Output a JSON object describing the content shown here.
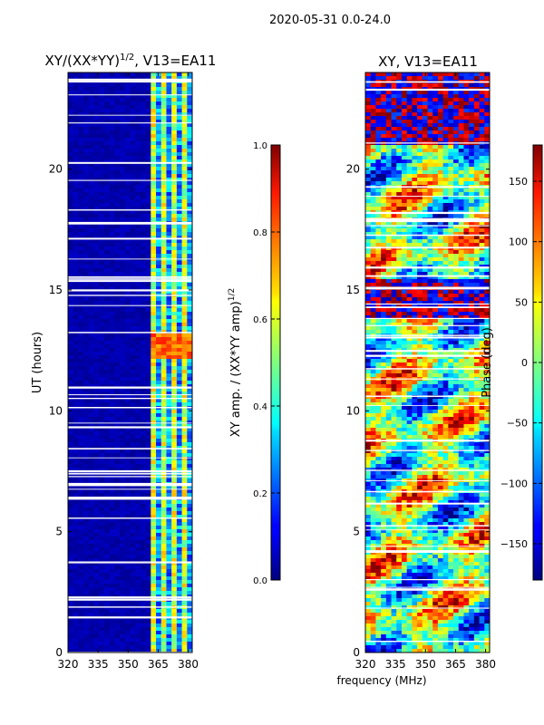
{
  "suptitle": "2020-05-31 0.0-24.0",
  "shared_xlabel": "frequency (MHz)",
  "chart_data": [
    {
      "type": "heatmap",
      "title_main": "XY/(XX*YY)",
      "title_exp": "1/2",
      "title_tail": ", V13=EA11",
      "ylabel": "UT (hours)",
      "x_ticks": [
        320,
        335,
        350,
        365,
        380
      ],
      "xlim": [
        320,
        382
      ],
      "y_ticks": [
        0,
        5,
        10,
        15,
        20
      ],
      "ylim": [
        0,
        24
      ],
      "colorbar": {
        "label": "XY amp. / (XX*YY amp)",
        "label_exp": "1/2",
        "ticks": [
          "0.0",
          "0.2",
          "0.4",
          "0.6",
          "0.8",
          "1.0"
        ],
        "range": [
          0,
          1
        ],
        "colormap": "jet"
      }
    },
    {
      "type": "heatmap",
      "title": "XY, V13=EA11",
      "ylabel": "",
      "x_ticks": [
        320,
        335,
        350,
        365,
        380
      ],
      "xlim": [
        320,
        382
      ],
      "y_ticks": [
        0,
        5,
        10,
        15,
        20
      ],
      "ylim": [
        0,
        24
      ],
      "colorbar": {
        "label": "Phase (deg)",
        "ticks": [
          "−150",
          "−100",
          "−50",
          "0",
          "50",
          "100",
          "150"
        ],
        "tick_values": [
          -150,
          -100,
          -50,
          0,
          50,
          100,
          150
        ],
        "range": [
          -180,
          180
        ],
        "colormap": "jet"
      }
    }
  ]
}
